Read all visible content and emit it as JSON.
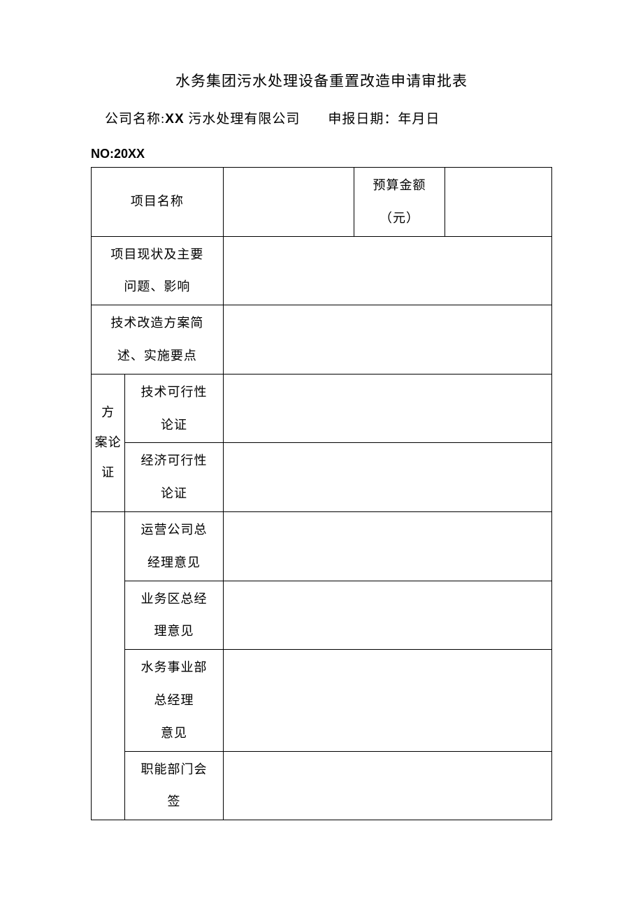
{
  "title": "水务集团污水处理设备重置改造申请审批表",
  "header": {
    "company_label": "公司名称:",
    "company_prefix": "XX",
    "company_suffix": " 污水处理有限公司",
    "date_label": "申报日期：年月日"
  },
  "form_no": "NO:20XX",
  "colors": {
    "background": "#ffffff",
    "text": "#000000",
    "border": "#000000"
  },
  "typography": {
    "title_fontsize": 21,
    "body_fontsize": 18,
    "header_fontsize": 19,
    "no_fontsize": 18,
    "line_height": 2.6
  },
  "table": {
    "column_widths_pct": [
      7.3,
      21.3,
      28.3,
      19.8,
      23.1
    ],
    "rows": [
      {
        "label_colspan": 2,
        "label": "项目名称",
        "value1": "",
        "col4_label": "预算金额（元）",
        "value2": ""
      },
      {
        "label_colspan": 2,
        "label": "项目现状及主要问题、影响",
        "value_colspan": 3,
        "value": ""
      },
      {
        "label_colspan": 2,
        "label": "技术改造方案简述、实施要点",
        "value_colspan": 3,
        "value": ""
      },
      {
        "group_label": "方案论证",
        "group_rowspan": 2,
        "sub_label": "技术可行性论证",
        "value_colspan": 3,
        "value": ""
      },
      {
        "sub_label": "经济可行性论证",
        "value_colspan": 3,
        "value": ""
      },
      {
        "group_label": "",
        "group_rowspan": 4,
        "sub_label": "运营公司总经理意见",
        "value_colspan": 3,
        "value": ""
      },
      {
        "sub_label": "业务区总经理意见",
        "value_colspan": 3,
        "value": ""
      },
      {
        "sub_label": "水务事业部总经理意见",
        "value_colspan": 3,
        "value": ""
      },
      {
        "sub_label": "职能部门会签",
        "value_colspan": 3,
        "value": ""
      }
    ]
  }
}
